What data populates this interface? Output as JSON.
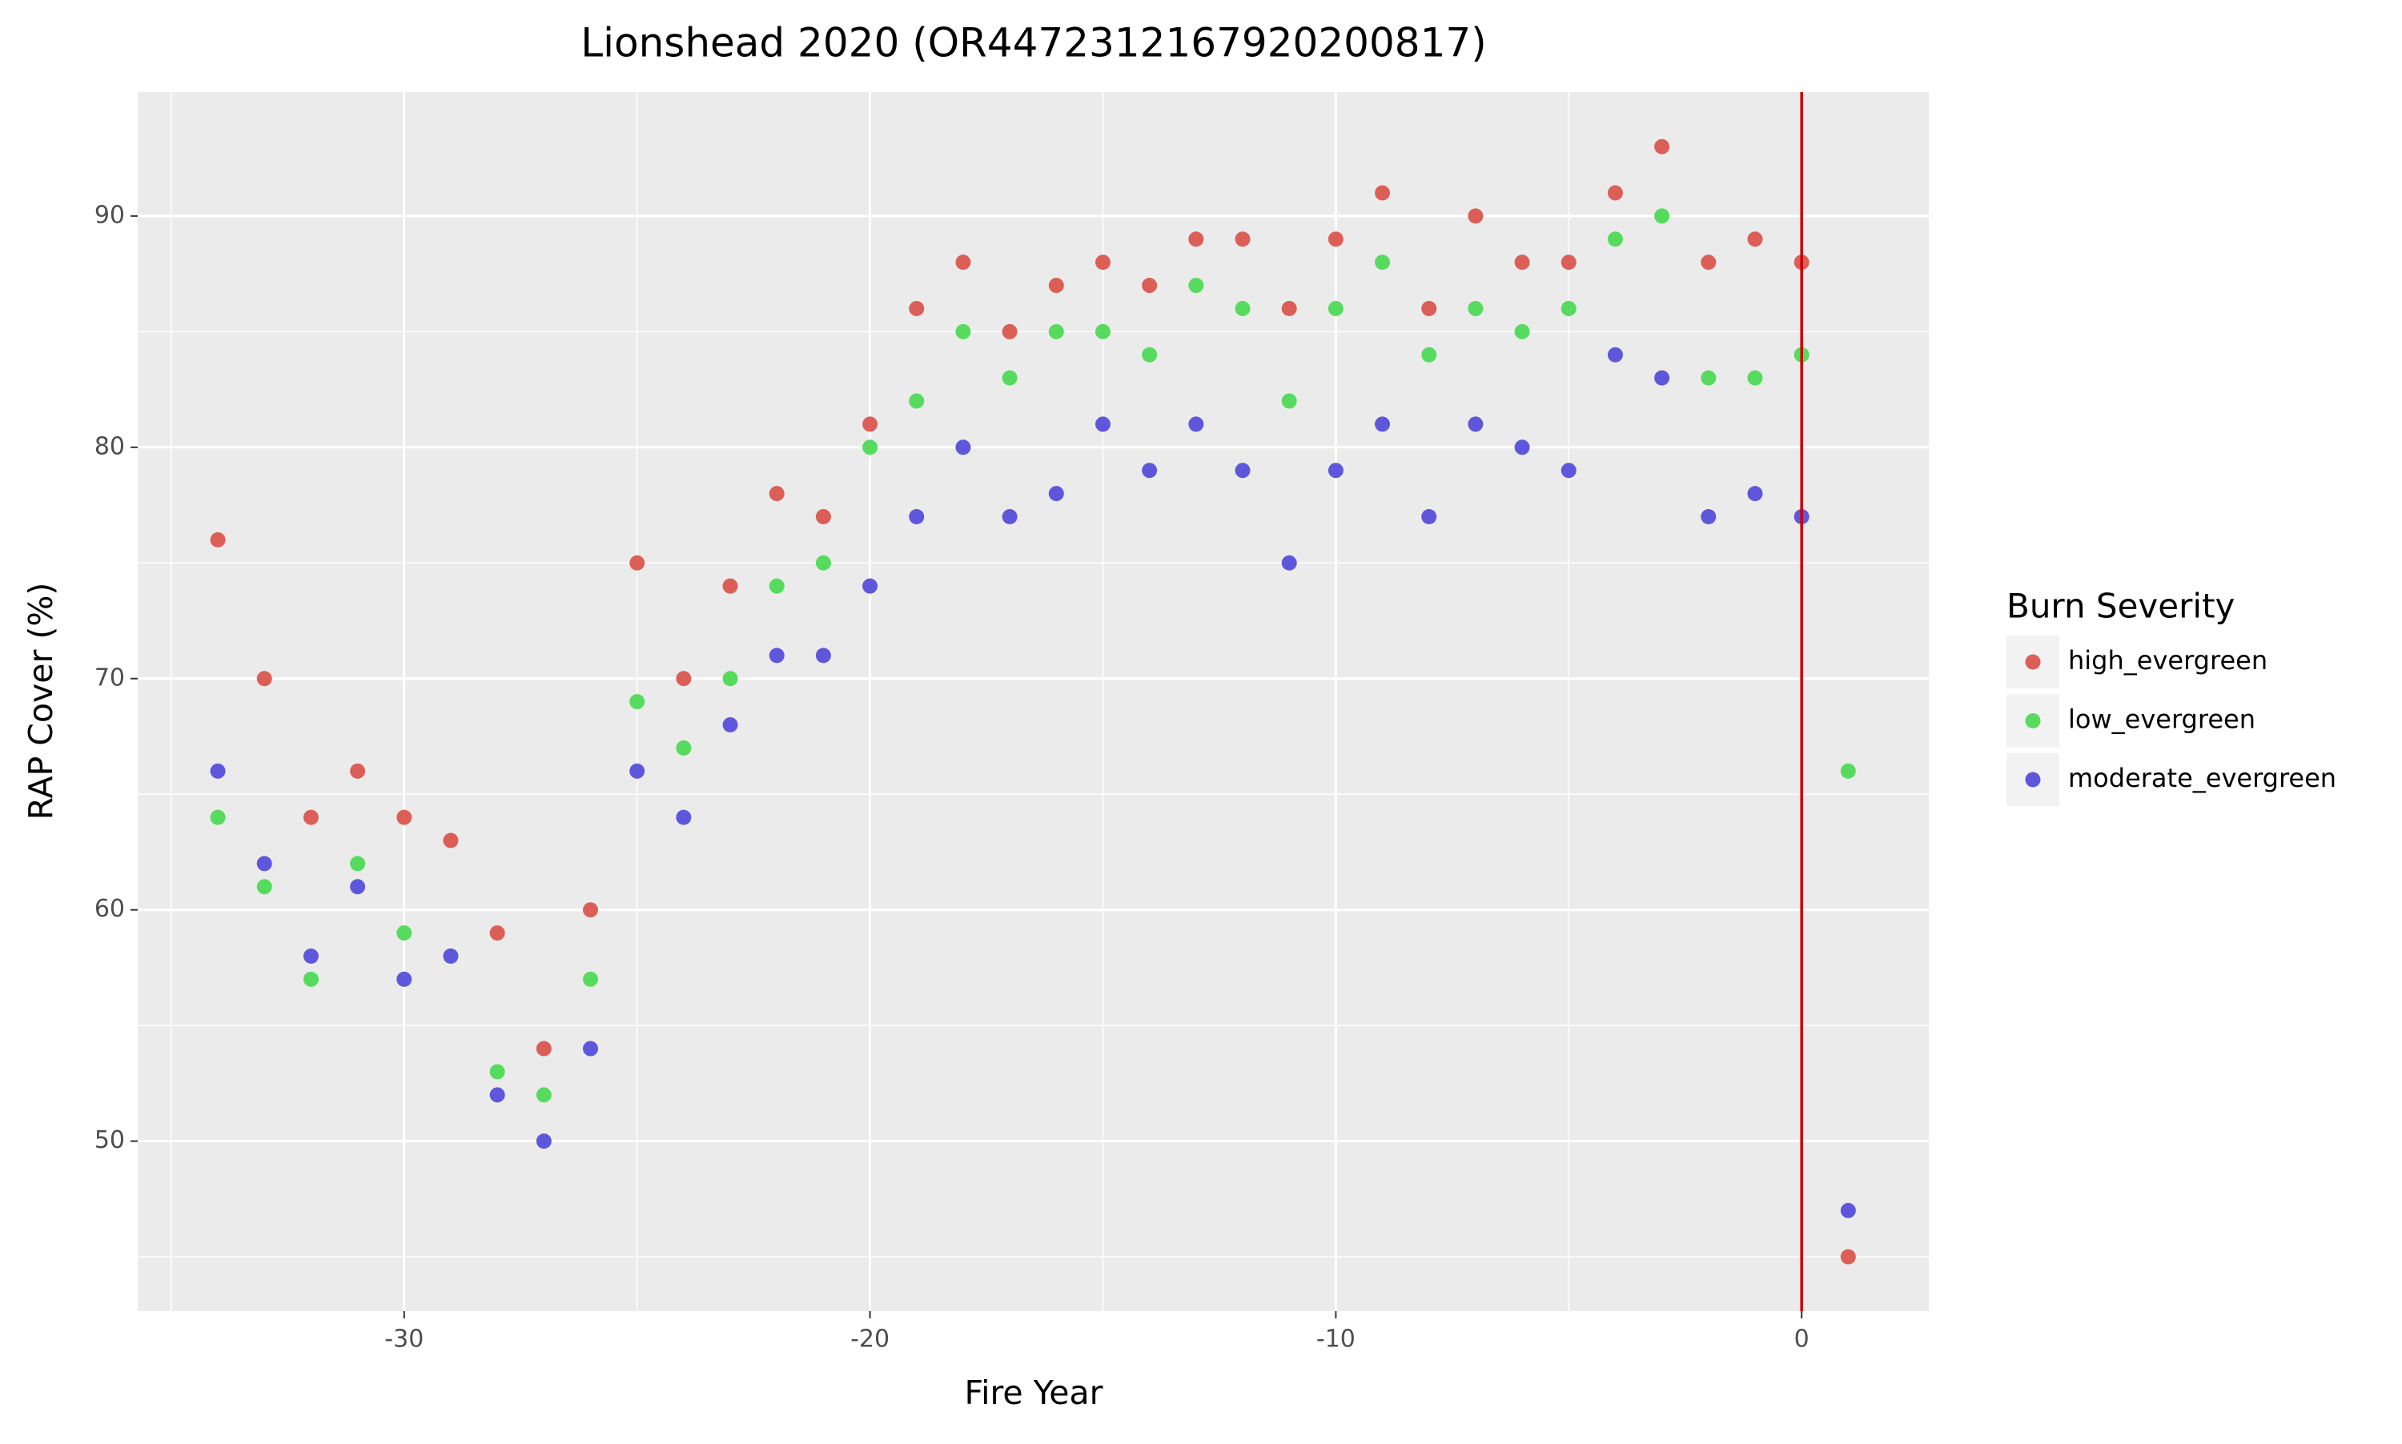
{
  "chart_data": {
    "type": "scatter",
    "title": "Lionshead 2020 (OR4472312167920200817)",
    "x_label": "Fire Year",
    "y_label": "RAP Cover (%)",
    "legend_title": "Burn Severity",
    "legend_position": "right",
    "grid": true,
    "x": [
      -34,
      -33,
      -32,
      -31,
      -30,
      -29,
      -28,
      -27,
      -26,
      -25,
      -24,
      -23,
      -22,
      -21,
      -20,
      -19,
      -18,
      -17,
      -16,
      -15,
      -14,
      -13,
      -12,
      -11,
      -10,
      -9,
      -8,
      -7,
      -6,
      -5,
      -4,
      -3,
      -2,
      -1,
      0,
      1
    ],
    "series": [
      {
        "name": "high_evergreen",
        "color": "#db5f57",
        "values": [
          76,
          70,
          64,
          66,
          64,
          63,
          59,
          54,
          60,
          75,
          70,
          74,
          78,
          77,
          81,
          86,
          88,
          85,
          87,
          88,
          87,
          89,
          89,
          86,
          89,
          91,
          86,
          90,
          88,
          88,
          91,
          93,
          88,
          89,
          88,
          45
        ]
      },
      {
        "name": "low_evergreen",
        "color": "#57db5f",
        "values": [
          64,
          61,
          57,
          62,
          59,
          58,
          53,
          52,
          57,
          69,
          67,
          70,
          74,
          75,
          80,
          82,
          85,
          83,
          85,
          85,
          84,
          87,
          86,
          82,
          86,
          88,
          84,
          86,
          85,
          86,
          89,
          90,
          83,
          83,
          84,
          66
        ]
      },
      {
        "name": "moderate_evergreen",
        "color": "#5f57db",
        "values": [
          66,
          62,
          58,
          61,
          57,
          58,
          52,
          50,
          54,
          66,
          64,
          68,
          71,
          71,
          74,
          77,
          80,
          77,
          78,
          81,
          79,
          81,
          79,
          75,
          79,
          81,
          77,
          81,
          80,
          79,
          84,
          83,
          77,
          78,
          77,
          47
        ]
      }
    ],
    "xlim": [
      -35.72,
      2.73
    ],
    "ylim": [
      42.65,
      95.36
    ],
    "xticks": [
      -30,
      -20,
      -10,
      0
    ],
    "yticks": [
      50,
      60,
      70,
      80,
      90
    ],
    "minor_xticks": [
      -35,
      -25,
      -15,
      -5
    ],
    "minor_yticks": [
      45,
      55,
      65,
      75,
      85
    ],
    "vline": {
      "x": 0,
      "color": "#cc0000"
    }
  }
}
